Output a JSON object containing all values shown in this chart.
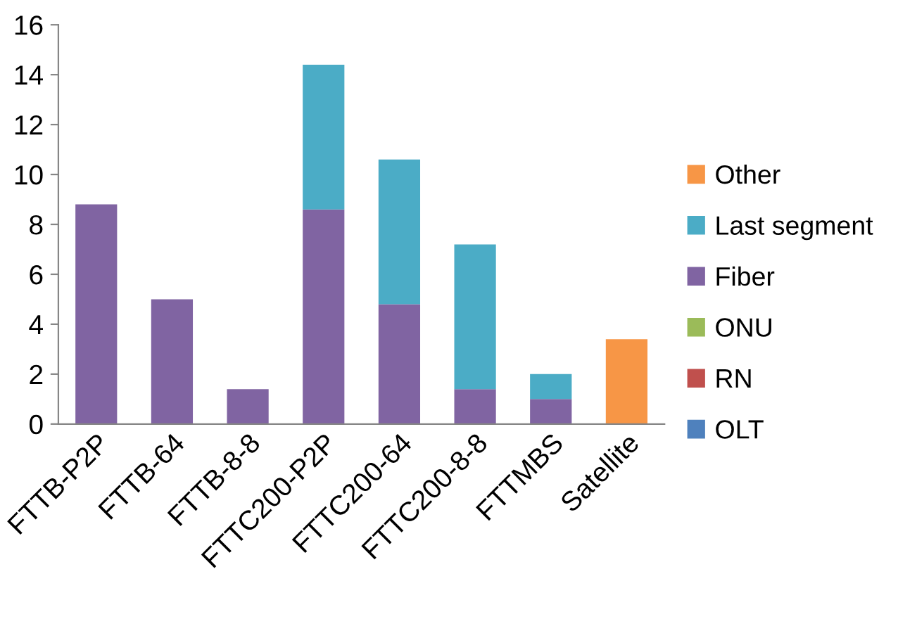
{
  "chart_data": {
    "type": "bar",
    "stacked": true,
    "categories": [
      "FTTB-P2P",
      "FTTB-64",
      "FTTB-8-8",
      "FTTC200-P2P",
      "FTTC200-64",
      "FTTC200-8-8",
      "FTTMBS",
      "Satellite"
    ],
    "series": [
      {
        "name": "OLT",
        "color": "#4f81bd",
        "values": [
          0,
          0,
          0,
          0,
          0,
          0,
          0,
          0
        ]
      },
      {
        "name": "RN",
        "color": "#c0504d",
        "values": [
          0,
          0,
          0,
          0,
          0,
          0,
          0,
          0
        ]
      },
      {
        "name": "ONU",
        "color": "#9bbb59",
        "values": [
          0,
          0,
          0,
          0,
          0,
          0,
          0,
          0
        ]
      },
      {
        "name": "Fiber",
        "color": "#8064a2",
        "values": [
          8.8,
          5.0,
          1.4,
          8.6,
          4.8,
          1.4,
          1.0,
          0
        ]
      },
      {
        "name": "Last segment",
        "color": "#4bacc6",
        "values": [
          0,
          0,
          0,
          5.8,
          5.8,
          5.8,
          1.0,
          0
        ]
      },
      {
        "name": "Other",
        "color": "#f79646",
        "values": [
          0,
          0,
          0,
          0,
          0,
          0,
          0,
          3.4
        ]
      }
    ],
    "ylim": [
      0,
      16
    ],
    "yticks": [
      0,
      2,
      4,
      6,
      8,
      10,
      12,
      14,
      16
    ],
    "grid": false,
    "legend": "right"
  }
}
